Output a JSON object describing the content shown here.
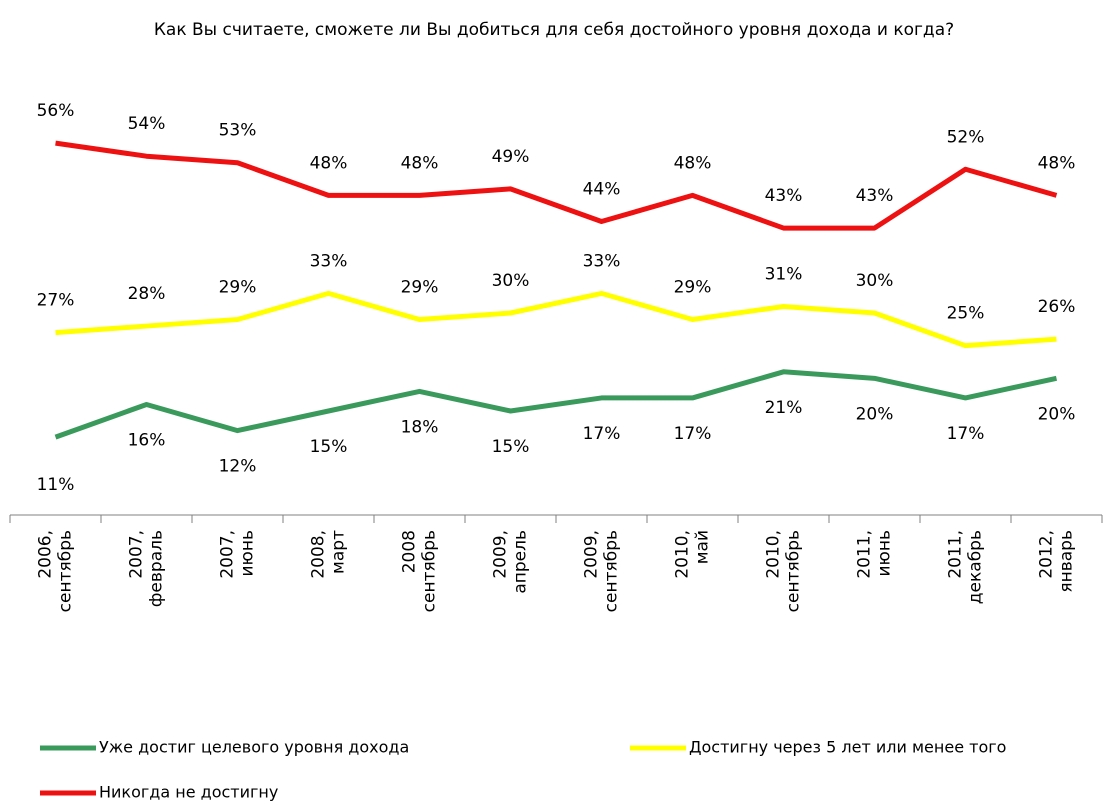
{
  "chart_data": {
    "type": "line",
    "title": "Как Вы считаете, сможете ли Вы добиться для себя достойного уровня дохода и когда?",
    "categories": [
      "2006, сентябрь",
      "2007, февраль",
      "2007, июнь",
      "2008, март",
      "2008 сентябрь",
      "2009, апрель",
      "2009, сентябрь",
      "2010, май",
      "2010, сентябрь",
      "2011, июнь",
      "2011, декабрь",
      "2012, январь"
    ],
    "ylim": [
      0,
      60
    ],
    "series": [
      {
        "name": "Уже достиг целевого уровня дохода",
        "color": "#3a9a5c",
        "values": [
          11,
          16,
          12,
          15,
          18,
          15,
          17,
          17,
          21,
          20,
          17,
          20
        ],
        "value_labels": [
          "11%",
          "16%",
          "12%",
          "15%",
          "18%",
          "15%",
          "17%",
          "17%",
          "21%",
          "20%",
          "17%",
          "20%"
        ]
      },
      {
        "name": "Достигну через 5 лет или менее того",
        "color": "#ffff00",
        "values": [
          27,
          28,
          29,
          33,
          29,
          30,
          33,
          29,
          31,
          30,
          25,
          26
        ],
        "value_labels": [
          "27%",
          "28%",
          "29%",
          "33%",
          "29%",
          "30%",
          "33%",
          "29%",
          "31%",
          "30%",
          "25%",
          "26%"
        ]
      },
      {
        "name": "Никогда не достигну",
        "color": "#ee1111",
        "values": [
          56,
          54,
          53,
          48,
          48,
          49,
          44,
          48,
          43,
          43,
          52,
          48
        ],
        "value_labels": [
          "56%",
          "54%",
          "53%",
          "48%",
          "48%",
          "49%",
          "44%",
          "48%",
          "43%",
          "43%",
          "52%",
          "48%"
        ]
      }
    ]
  }
}
